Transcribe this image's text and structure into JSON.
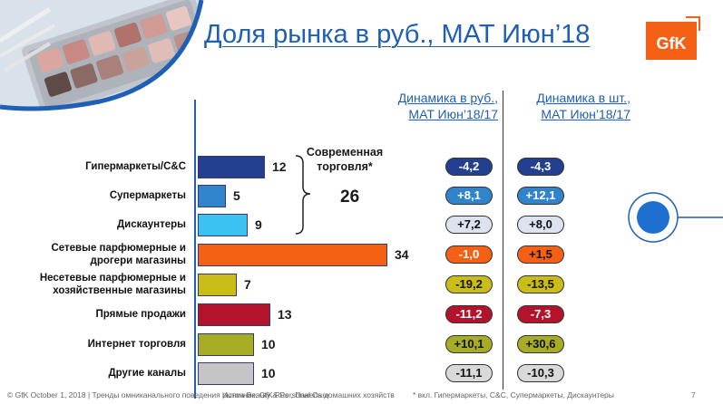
{
  "slide": {
    "title": "Доля рынка в руб., MAT Июн’18",
    "logo_text": "GfK",
    "col1_line1": "Динамика в руб.,",
    "col1_line2": "MAT Июн’18/17",
    "col2_line1": "Динамика в шт.,",
    "col2_line2": "MAT Июн’18/17",
    "group_note_line1": "Современная",
    "group_note_line2": "торговля*",
    "group_total": "26",
    "footer": "© GfK October 1, 2018 | Тренды омниканального поведения рынка Beauty & Personal Care",
    "footer_overlap": "Источник: GfK Rus , Панель домашних хозяйств",
    "footnote": "* вкл. Гипермаркеты, C&C, Супермаркеты, Дискаунтеры",
    "page_number": "7"
  },
  "rows": [
    {
      "category": "Гипермаркеты/С&C",
      "share": "12",
      "share_value": 12,
      "bar_color": "#233f8f",
      "rub": "-4,2",
      "rub_fill": "#233f8f",
      "rub_text": "#ffffff",
      "pcs": "-4,3",
      "pcs_fill": "#233f8f",
      "pcs_text": "#ffffff"
    },
    {
      "category": "Супермаркеты",
      "share": "5",
      "share_value": 5,
      "bar_color": "#2f84cc",
      "rub": "+8,1",
      "rub_fill": "#2f84cc",
      "rub_text": "#ffffff",
      "pcs": "+12,1",
      "pcs_fill": "#2f84cc",
      "pcs_text": "#ffffff"
    },
    {
      "category": "Дискаунтеры",
      "share": "9",
      "share_value": 9,
      "bar_color": "#39c2f2",
      "rub": "+7,2",
      "rub_fill": "#dce3ef",
      "rub_text": "#111111",
      "pcs": "+8,0",
      "pcs_fill": "#dce3ef",
      "pcs_text": "#111111"
    },
    {
      "category": "Сетевые парфюмерные и\nдрогери магазины",
      "share": "34",
      "share_value": 34,
      "bar_color": "#f46014",
      "rub": "-1,0",
      "rub_fill": "#f46014",
      "rub_text": "#ffffff",
      "pcs": "+1,5",
      "pcs_fill": "#f46014",
      "pcs_text": "#111111"
    },
    {
      "category": "Несетевые парфюмерные и\nхозяйственные магазины",
      "share": "7",
      "share_value": 7,
      "bar_color": "#cbbd17",
      "rub": "-19,2",
      "rub_fill": "#cbbd17",
      "rub_text": "#111111",
      "pcs": "-13,5",
      "pcs_fill": "#cbbd17",
      "pcs_text": "#111111"
    },
    {
      "category": "Прямые продажи",
      "share": "13",
      "share_value": 13,
      "bar_color": "#b3142b",
      "rub": "-11,2",
      "rub_fill": "#b3142b",
      "rub_text": "#ffffff",
      "pcs": "-7,3",
      "pcs_fill": "#b3142b",
      "pcs_text": "#ffffff"
    },
    {
      "category": "Интернет торговля",
      "share": "10",
      "share_value": 10,
      "bar_color": "#a6ad25",
      "rub": "+10,1",
      "rub_fill": "#a6ad25",
      "rub_text": "#111111",
      "pcs": "+30,6",
      "pcs_fill": "#a6ad25",
      "pcs_text": "#111111"
    },
    {
      "category": "Другие каналы",
      "share": "10",
      "share_value": 10,
      "bar_color": "#c5c5c7",
      "rub": "-11,1",
      "rub_fill": "#d9d9d9",
      "rub_text": "#111111",
      "pcs": "-10,3",
      "pcs_fill": "#d9d9d9",
      "pcs_text": "#111111"
    }
  ]
}
